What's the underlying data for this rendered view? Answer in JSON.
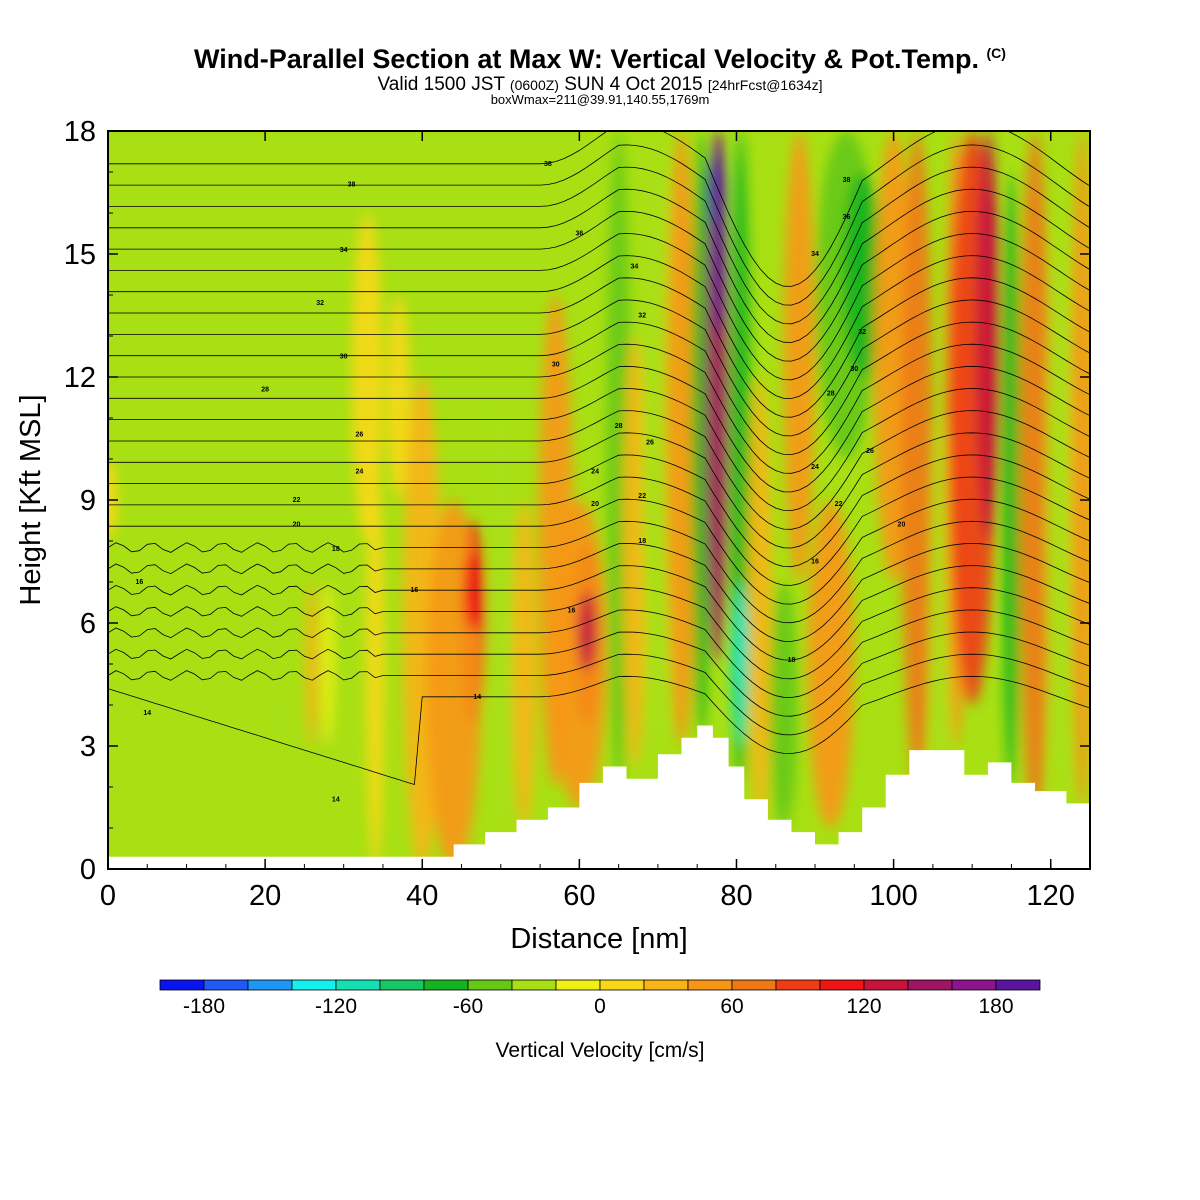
{
  "header": {
    "title": "Wind-Parallel Section at Max W: Vertical Velocity & Pot.Temp.",
    "copyright": "(C)",
    "valid_prefix": "Valid 1500 JST",
    "valid_zulu": "(0600Z)",
    "valid_date": "SUN 4 Oct 2015",
    "forecast_info": "[24hrFcst@1634z]",
    "box_info": "boxWmax=211@39.91,140.55,1769m"
  },
  "chart_data": {
    "type": "heatmap",
    "xlabel": "Distance [nm]",
    "ylabel": "Height [Kft MSL]",
    "xlim": [
      0,
      125
    ],
    "ylim": [
      0,
      18
    ],
    "xticks": [
      "0",
      "20",
      "40",
      "60",
      "80",
      "100",
      "120"
    ],
    "xtick_values": [
      0,
      20,
      40,
      60,
      80,
      100,
      120
    ],
    "yticks": [
      "0",
      "3",
      "6",
      "9",
      "12",
      "15",
      "18"
    ],
    "ytick_values": [
      0,
      3,
      6,
      9,
      12,
      15,
      18
    ],
    "colorbar": {
      "title": "Vertical Velocity [cm/s]",
      "min": -200,
      "max": 200,
      "step": 20,
      "tick_labels": [
        "-180",
        "-120",
        "-60",
        "0",
        "60",
        "120",
        "180"
      ],
      "tick_values": [
        -180,
        -120,
        -60,
        0,
        60,
        120,
        180
      ],
      "colors": [
        "#0a14f0",
        "#1e5af5",
        "#1e96f5",
        "#14f0f0",
        "#14e0b4",
        "#14c864",
        "#14b41e",
        "#64c814",
        "#a8e014",
        "#f0f014",
        "#f8d814",
        "#f8b414",
        "#f89614",
        "#f07814",
        "#f03c14",
        "#f01414",
        "#c8143c",
        "#a01464",
        "#8c148c",
        "#5a14a0"
      ]
    },
    "terrain": [
      {
        "x": 0,
        "h": 0.3
      },
      {
        "x": 20,
        "h": 0.3
      },
      {
        "x": 40,
        "h": 0.3
      },
      {
        "x": 44,
        "h": 0.6
      },
      {
        "x": 48,
        "h": 0.9
      },
      {
        "x": 52,
        "h": 1.2
      },
      {
        "x": 56,
        "h": 1.5
      },
      {
        "x": 60,
        "h": 2.1
      },
      {
        "x": 63,
        "h": 2.5
      },
      {
        "x": 66,
        "h": 2.2
      },
      {
        "x": 70,
        "h": 2.8
      },
      {
        "x": 73,
        "h": 3.2
      },
      {
        "x": 75,
        "h": 3.5
      },
      {
        "x": 77,
        "h": 3.2
      },
      {
        "x": 79,
        "h": 2.5
      },
      {
        "x": 81,
        "h": 1.7
      },
      {
        "x": 84,
        "h": 1.2
      },
      {
        "x": 87,
        "h": 0.9
      },
      {
        "x": 90,
        "h": 0.6
      },
      {
        "x": 93,
        "h": 0.9
      },
      {
        "x": 96,
        "h": 1.5
      },
      {
        "x": 99,
        "h": 2.3
      },
      {
        "x": 102,
        "h": 2.9
      },
      {
        "x": 106,
        "h": 2.9
      },
      {
        "x": 109,
        "h": 2.3
      },
      {
        "x": 112,
        "h": 2.6
      },
      {
        "x": 115,
        "h": 2.1
      },
      {
        "x": 118,
        "h": 1.9
      },
      {
        "x": 122,
        "h": 1.6
      },
      {
        "x": 125,
        "h": 1.3
      }
    ],
    "vertical_velocity_features": [
      {
        "x": 0,
        "h": 9,
        "value": 0
      },
      {
        "x": 46.5,
        "h": 6.8,
        "value": 100
      },
      {
        "x": 61,
        "h": 5.8,
        "value": 130
      },
      {
        "x": 77.5,
        "h": 16.5,
        "value": 180
      },
      {
        "x": 80.5,
        "h": 5.5,
        "value": -110
      },
      {
        "x": 112,
        "h": 15.5,
        "value": 120
      },
      {
        "x": 96,
        "h": 15,
        "value": -70
      }
    ],
    "theta_contour_labels": [
      {
        "x": 56,
        "h": 17.2,
        "text": "38"
      },
      {
        "x": 31,
        "h": 16.7,
        "text": "38"
      },
      {
        "x": 60,
        "h": 15.5,
        "text": "36"
      },
      {
        "x": 30,
        "h": 15.1,
        "text": "34"
      },
      {
        "x": 67,
        "h": 14.7,
        "text": "34"
      },
      {
        "x": 27,
        "h": 13.8,
        "text": "32"
      },
      {
        "x": 68,
        "h": 13.5,
        "text": "32"
      },
      {
        "x": 30,
        "h": 12.5,
        "text": "30"
      },
      {
        "x": 57,
        "h": 12.3,
        "text": "30"
      },
      {
        "x": 20,
        "h": 11.7,
        "text": "28"
      },
      {
        "x": 32,
        "h": 10.6,
        "text": "26"
      },
      {
        "x": 65,
        "h": 10.8,
        "text": "28"
      },
      {
        "x": 69,
        "h": 10.4,
        "text": "26"
      },
      {
        "x": 32,
        "h": 9.7,
        "text": "24"
      },
      {
        "x": 62,
        "h": 9.7,
        "text": "24"
      },
      {
        "x": 24,
        "h": 9.0,
        "text": "22"
      },
      {
        "x": 68,
        "h": 9.1,
        "text": "22"
      },
      {
        "x": 24,
        "h": 8.4,
        "text": "20"
      },
      {
        "x": 62,
        "h": 8.9,
        "text": "20"
      },
      {
        "x": 29,
        "h": 7.8,
        "text": "18"
      },
      {
        "x": 68,
        "h": 8.0,
        "text": "18"
      },
      {
        "x": 4,
        "h": 7.0,
        "text": "16"
      },
      {
        "x": 39,
        "h": 6.8,
        "text": "16"
      },
      {
        "x": 59,
        "h": 6.3,
        "text": "16"
      },
      {
        "x": 90,
        "h": 7.5,
        "text": "16"
      },
      {
        "x": 87,
        "h": 5.1,
        "text": "18"
      },
      {
        "x": 47,
        "h": 4.2,
        "text": "14"
      },
      {
        "x": 5,
        "h": 3.8,
        "text": "14"
      },
      {
        "x": 29,
        "h": 1.7,
        "text": "14"
      },
      {
        "x": 94,
        "h": 16.8,
        "text": "38"
      },
      {
        "x": 94,
        "h": 15.9,
        "text": "36"
      },
      {
        "x": 90,
        "h": 15.0,
        "text": "34"
      },
      {
        "x": 96,
        "h": 13.1,
        "text": "32"
      },
      {
        "x": 95,
        "h": 12.2,
        "text": "30"
      },
      {
        "x": 92,
        "h": 11.6,
        "text": "28"
      },
      {
        "x": 97,
        "h": 10.2,
        "text": "26"
      },
      {
        "x": 90,
        "h": 9.8,
        "text": "24"
      },
      {
        "x": 93,
        "h": 8.9,
        "text": "22"
      },
      {
        "x": 101,
        "h": 8.4,
        "text": "20"
      }
    ]
  }
}
